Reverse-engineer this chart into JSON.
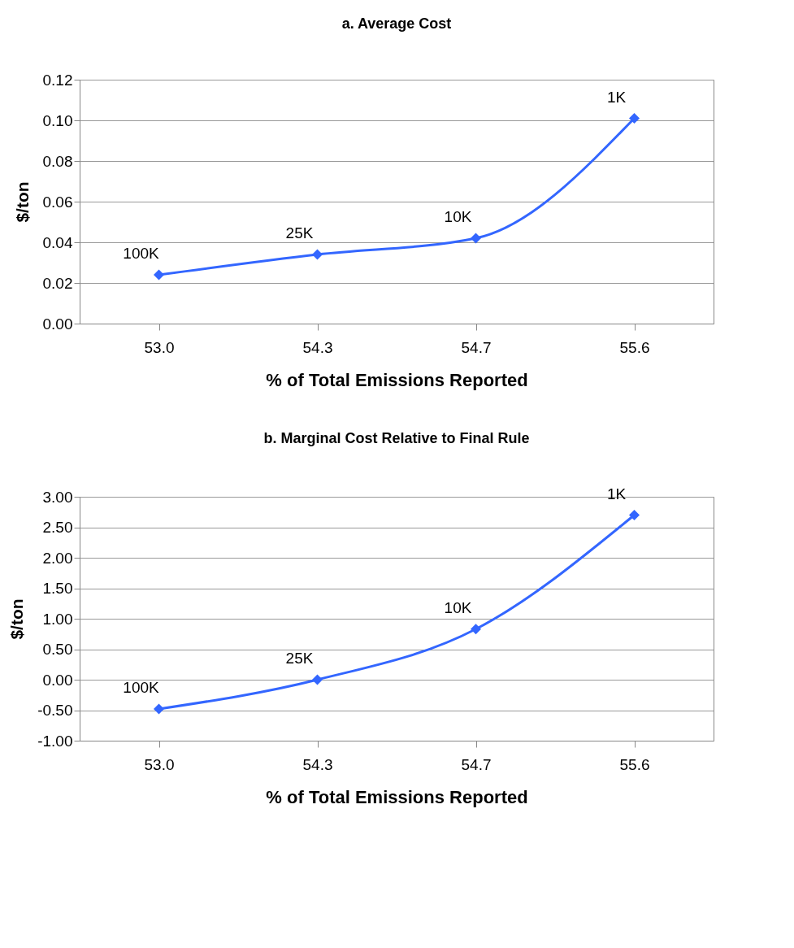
{
  "chart_data": [
    {
      "type": "line",
      "title": "a. Average Cost",
      "xlabel": "% of Total Emissions Reported",
      "ylabel": "$/ton",
      "categories": [
        "53.0",
        "54.3",
        "54.7",
        "55.6"
      ],
      "series": [
        {
          "color": "#3366ff",
          "values": [
            0.024,
            0.034,
            0.042,
            0.101
          ]
        }
      ],
      "ylim": [
        0,
        0.12
      ],
      "yticks": [
        {
          "value": 0,
          "label": "0.00"
        },
        {
          "value": 0.02,
          "label": "0.02"
        },
        {
          "value": 0.04,
          "label": "0.04"
        },
        {
          "value": 0.06,
          "label": "0.06"
        },
        {
          "value": 0.08,
          "label": "0.08"
        },
        {
          "value": 0.1,
          "label": "0.10"
        },
        {
          "value": 0.12,
          "label": "0.12"
        }
      ],
      "grid": "y",
      "marker": "diamond",
      "line_style": "solid",
      "annotations": [
        {
          "text": "100K",
          "x": "53.0",
          "y": 0.024
        },
        {
          "text": "25K",
          "x": "54.3",
          "y": 0.034
        },
        {
          "text": "10K",
          "x": "54.7",
          "y": 0.042
        },
        {
          "text": "1K",
          "x": "55.6",
          "y": 0.101
        }
      ]
    },
    {
      "type": "line",
      "title": "b. Marginal Cost Relative to Final Rule",
      "xlabel": "% of Total Emissions Reported",
      "ylabel": "$/ton",
      "categories": [
        "53.0",
        "54.3",
        "54.7",
        "55.6"
      ],
      "series": [
        {
          "color": "#3366ff",
          "values": [
            -0.48,
            0.0,
            0.83,
            2.7
          ]
        }
      ],
      "ylim": [
        -1,
        3
      ],
      "yticks": [
        {
          "value": -1,
          "label": "-1.00"
        },
        {
          "value": -0.5,
          "label": "-0.50"
        },
        {
          "value": 0,
          "label": "0.00"
        },
        {
          "value": 0.5,
          "label": "0.50"
        },
        {
          "value": 1,
          "label": "1.00"
        },
        {
          "value": 1.5,
          "label": "1.50"
        },
        {
          "value": 2,
          "label": "2.00"
        },
        {
          "value": 2.5,
          "label": "2.50"
        },
        {
          "value": 3,
          "label": "3.00"
        }
      ],
      "grid": "y",
      "marker": "diamond",
      "line_style": "solid",
      "annotations": [
        {
          "text": "100K",
          "x": "53.0",
          "y": -0.48
        },
        {
          "text": "25K",
          "x": "54.3",
          "y": 0.0
        },
        {
          "text": "10K",
          "x": "54.7",
          "y": 0.83
        },
        {
          "text": "1K",
          "x": "55.6",
          "y": 2.7
        }
      ]
    }
  ]
}
